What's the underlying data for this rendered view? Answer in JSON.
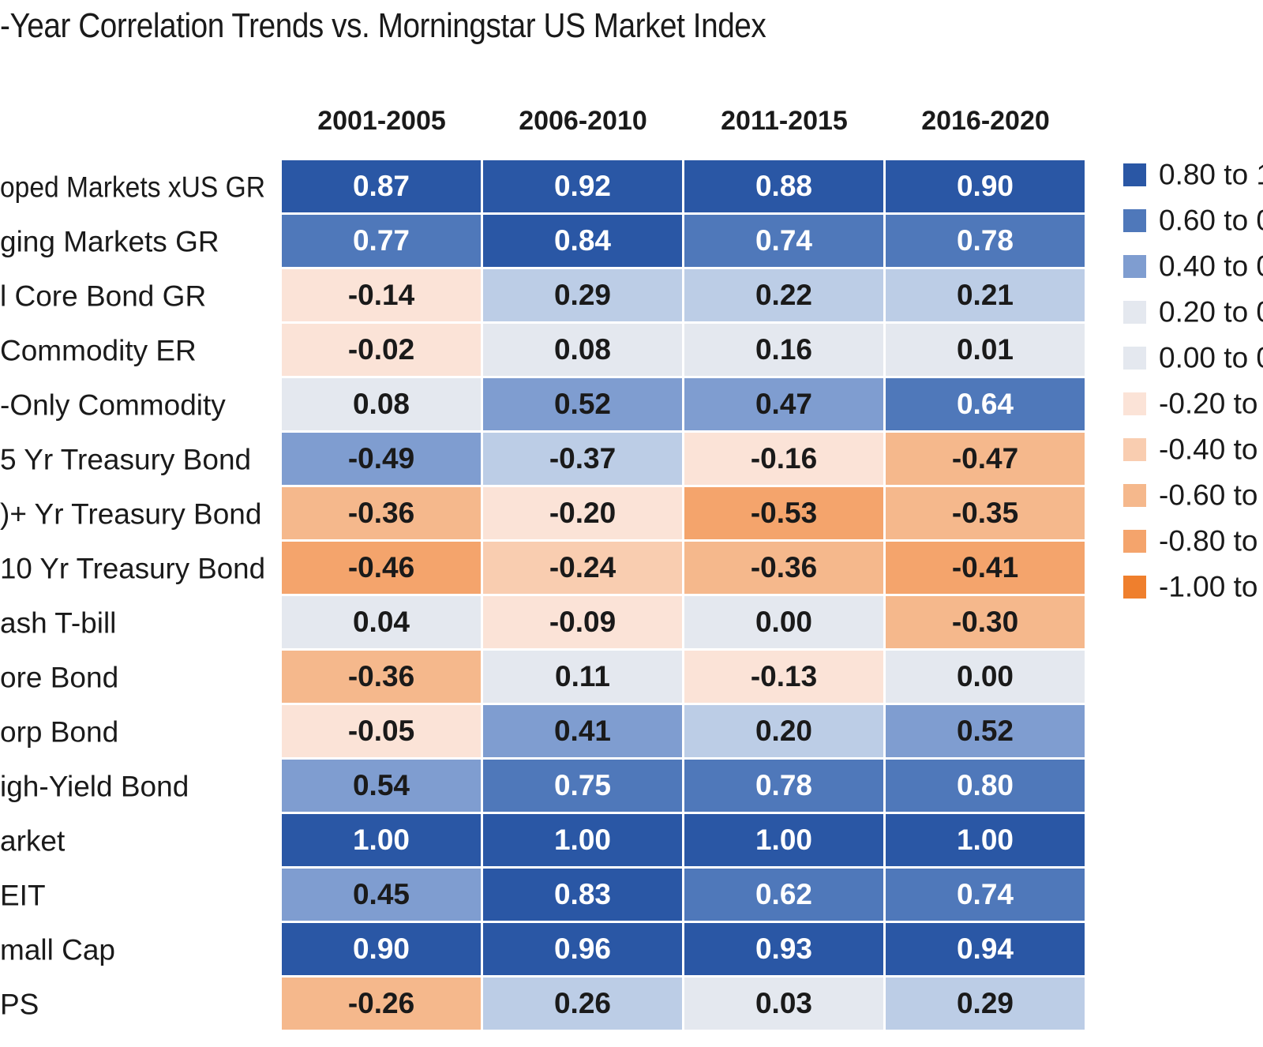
{
  "chart_data": {
    "type": "heatmap",
    "title": "-Year Correlation Trends vs. Morningstar US Market Index",
    "columns": [
      "2001-2005",
      "2006-2010",
      "2011-2015",
      "2016-2020"
    ],
    "rows": [
      {
        "label": "oped Markets xUS GR",
        "values": [
          0.87,
          0.92,
          0.88,
          0.9
        ]
      },
      {
        "label": "ging Markets GR",
        "values": [
          0.77,
          0.84,
          0.74,
          0.78
        ]
      },
      {
        "label": "l Core Bond GR",
        "values": [
          -0.14,
          0.29,
          0.22,
          0.21
        ]
      },
      {
        "label": "Commodity ER",
        "values": [
          -0.02,
          0.08,
          0.16,
          0.01
        ]
      },
      {
        "label": "-Only Commodity",
        "values": [
          0.08,
          0.52,
          0.47,
          0.64
        ]
      },
      {
        "label": "5 Yr Treasury Bond",
        "values": [
          -0.49,
          -0.37,
          -0.16,
          -0.47
        ]
      },
      {
        "label": ")+ Yr Treasury Bond",
        "values": [
          -0.36,
          -0.2,
          -0.53,
          -0.35
        ]
      },
      {
        "label": "10 Yr Treasury Bond",
        "values": [
          -0.46,
          -0.24,
          -0.36,
          -0.41
        ]
      },
      {
        "label": "ash T-bill",
        "values": [
          0.04,
          -0.09,
          0.0,
          -0.3
        ]
      },
      {
        "label": "ore Bond",
        "values": [
          -0.36,
          0.11,
          -0.13,
          0.0
        ]
      },
      {
        "label": "orp Bond",
        "values": [
          -0.05,
          0.41,
          0.2,
          0.52
        ]
      },
      {
        "label": "igh-Yield Bond",
        "values": [
          0.54,
          0.75,
          0.78,
          0.8
        ]
      },
      {
        "label": "arket",
        "values": [
          1.0,
          1.0,
          1.0,
          1.0
        ]
      },
      {
        "label": "EIT",
        "values": [
          0.45,
          0.83,
          0.62,
          0.74
        ]
      },
      {
        "label": "mall Cap",
        "values": [
          0.9,
          0.96,
          0.93,
          0.94
        ]
      },
      {
        "label": "PS",
        "values": [
          -0.26,
          0.26,
          0.03,
          0.29
        ]
      }
    ],
    "cell_colors": [
      [
        "#2a57a5",
        "#2a57a5",
        "#2a57a5",
        "#2a57a5"
      ],
      [
        "#4f78ba",
        "#2a57a5",
        "#4f78ba",
        "#4f78ba"
      ],
      [
        "#fbe3d7",
        "#bccde6",
        "#bccde6",
        "#bccde6"
      ],
      [
        "#fbe3d7",
        "#e4e8ef",
        "#e4e8ef",
        "#e4e8ef"
      ],
      [
        "#e4e8ef",
        "#7f9dd0",
        "#7f9dd0",
        "#4f78ba"
      ],
      [
        "#7f9dd0",
        "#bccde6",
        "#fbe3d7",
        "#f5b88c"
      ],
      [
        "#f5b88c",
        "#fbe3d7",
        "#f4a46c",
        "#f5b88c"
      ],
      [
        "#f4a46c",
        "#f9cdb0",
        "#f5b88c",
        "#f4a46c"
      ],
      [
        "#e4e8ef",
        "#fbe3d7",
        "#e4e8ef",
        "#f5b88c"
      ],
      [
        "#f5b88c",
        "#e4e8ef",
        "#fbe3d7",
        "#e4e8ef"
      ],
      [
        "#fbe3d7",
        "#7f9dd0",
        "#bccde6",
        "#7f9dd0"
      ],
      [
        "#7f9dd0",
        "#4f78ba",
        "#4f78ba",
        "#4f78ba"
      ],
      [
        "#2a57a5",
        "#2a57a5",
        "#2a57a5",
        "#2a57a5"
      ],
      [
        "#7f9dd0",
        "#2a57a5",
        "#4f78ba",
        "#4f78ba"
      ],
      [
        "#2a57a5",
        "#2a57a5",
        "#2a57a5",
        "#2a57a5"
      ],
      [
        "#f5b88c",
        "#bccde6",
        "#e4e8ef",
        "#bccde6"
      ]
    ],
    "legend": [
      {
        "label": "0.80 to 1",
        "color": "#2a57a5"
      },
      {
        "label": "0.60 to 0",
        "color": "#4f78ba"
      },
      {
        "label": "0.40 to 0",
        "color": "#7f9dd0"
      },
      {
        "label": "0.20 to 0",
        "color": "#e4e8ef"
      },
      {
        "label": "0.00 to 0",
        "color": "#e4e8ef"
      },
      {
        "label": "-0.20 to (",
        "color": "#fbe3d7"
      },
      {
        "label": "-0.40 to -",
        "color": "#f9cdb0"
      },
      {
        "label": "-0.60 to -",
        "color": "#f5b88c"
      },
      {
        "label": "-0.80 to -",
        "color": "#f4a46c"
      },
      {
        "label": "-1.00 to -",
        "color": "#ef7f2d"
      }
    ],
    "dark_text_color": "#1a1a1a",
    "light_text_color": "#ffffff",
    "light_text_backgrounds": [
      "#2a57a5",
      "#4f78ba"
    ],
    "grid": false,
    "legend_position": "right"
  }
}
